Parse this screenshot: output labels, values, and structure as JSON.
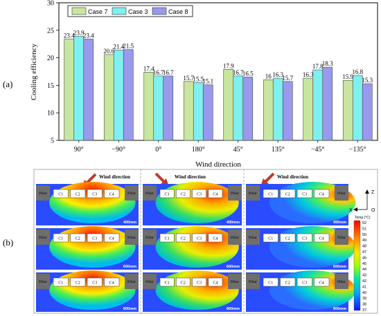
{
  "panel_labels": {
    "a": "(a)",
    "b": "(b)"
  },
  "chart_data": {
    "type": "bar",
    "title": "",
    "xlabel": "Wind direction",
    "ylabel": "Cooling efficiency",
    "ylim": [
      5,
      30
    ],
    "yticks": [
      5,
      10,
      15,
      20,
      25,
      30
    ],
    "categories": [
      "90°",
      "−90°",
      "0°",
      "180°",
      "45°",
      "135°",
      "−45°",
      "−135°"
    ],
    "series": [
      {
        "name": "Case 7",
        "color": "#c8e6a0",
        "values": [
          23.4,
          20.6,
          17.4,
          15.7,
          17.9,
          16,
          16.3,
          15.9
        ],
        "labels": [
          "23.4",
          "20.6",
          "17.4",
          "15.7",
          "17.9",
          "16",
          "16.3",
          "15.9"
        ]
      },
      {
        "name": "Case 3",
        "color": "#7ff0f0",
        "values": [
          23.9,
          21.4,
          16.7,
          15.5,
          16.7,
          16.3,
          17.8,
          16.8
        ],
        "labels": [
          "23.9",
          "21.4",
          "16.7",
          "15.5",
          "16.7",
          "16.3",
          "17.8",
          "16.8"
        ]
      },
      {
        "name": "Case 8",
        "color": "#9999ee",
        "values": [
          23.4,
          21.5,
          16.7,
          15.1,
          16.5,
          15.7,
          18.3,
          15.3
        ],
        "labels": [
          "23.4",
          "21.5",
          "16.7",
          "15.1",
          "16.5",
          "15.7",
          "18.3",
          "15.3"
        ]
      }
    ],
    "grid": false,
    "legend_position": "top-left"
  },
  "contours": {
    "wind_label": "Wind direction",
    "pillar_label": "Pillar",
    "cells": [
      "C1",
      "C2",
      "C3",
      "C4"
    ],
    "height_labels": [
      "400mm",
      "600mm",
      "800mm"
    ],
    "colorbar_title": "Temp (°C)",
    "colorbar_ticks": [
      "52",
      "51",
      "50",
      "49",
      "48",
      "47",
      "46",
      "45",
      "44",
      "43",
      "42",
      "41",
      "40",
      "39",
      "38",
      "37"
    ],
    "colorbar_colors": [
      "#ff0000",
      "#ff2a00",
      "#ff5a00",
      "#ff8a00",
      "#ffb400",
      "#ffdc00",
      "#f0f000",
      "#c8ff00",
      "#8cff00",
      "#46f046",
      "#00e6a0",
      "#00d2d2",
      "#00aaff",
      "#0078ff",
      "#0046ff",
      "#1414ff"
    ],
    "axis_z": "Z",
    "axis_x": "X",
    "axis_o": "O"
  }
}
